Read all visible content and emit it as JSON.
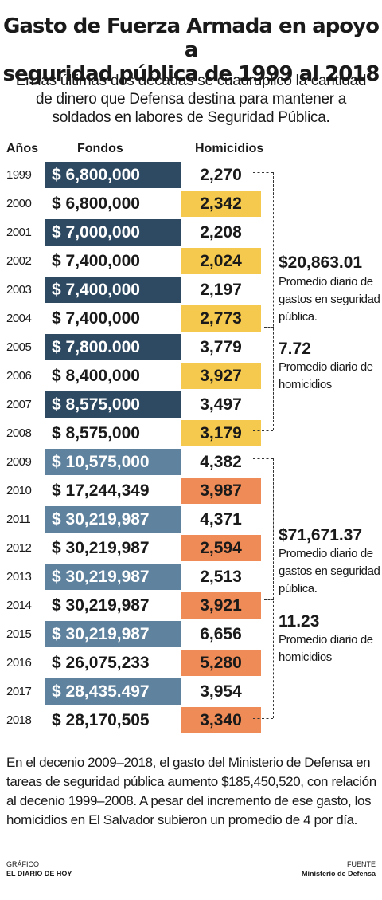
{
  "header": {
    "title_line1": "Gasto de Fuerza Armada en apoyo a",
    "title_line2": "seguridad pública de 1999 al 2018",
    "subtitle": "En las últimas dos décadas se cuadruplicó la cantidad de dinero que Defensa destina para mantener a soldados en labores de Seguridad Pública."
  },
  "columns": {
    "years": "Años",
    "fondos": "Fondos",
    "homicidios": "Homicidios"
  },
  "colors": {
    "dark_navy": "#2e4a62",
    "steel_blue": "#5f829e",
    "yellow": "#f5c94e",
    "orange": "#ee8b56"
  },
  "chart_data": {
    "type": "table",
    "columns": [
      "Años",
      "Fondos",
      "Homicidios"
    ],
    "rows": [
      {
        "year": "1999",
        "fondos": "$ 6,800,000",
        "homicidios": "2,270"
      },
      {
        "year": "2000",
        "fondos": "$ 6,800,000",
        "homicidios": "2,342"
      },
      {
        "year": "2001",
        "fondos": "$ 7,000,000",
        "homicidios": "2,208"
      },
      {
        "year": "2002",
        "fondos": "$ 7,400,000",
        "homicidios": "2,024"
      },
      {
        "year": "2003",
        "fondos": "$ 7,400,000",
        "homicidios": "2,197"
      },
      {
        "year": "2004",
        "fondos": "$ 7,400,000",
        "homicidios": "2,773"
      },
      {
        "year": "2005",
        "fondos": "$ 7,800.000",
        "homicidios": "3,779"
      },
      {
        "year": "2006",
        "fondos": "$ 8,400,000",
        "homicidios": "3,927"
      },
      {
        "year": "2007",
        "fondos": "$ 8,575,000",
        "homicidios": "3,497"
      },
      {
        "year": "2008",
        "fondos": "$ 8,575,000",
        "homicidios": "3,179"
      },
      {
        "year": "2009",
        "fondos": "$ 10,575,000",
        "homicidios": "4,382"
      },
      {
        "year": "2010",
        "fondos": "$ 17,244,349",
        "homicidios": "3,987"
      },
      {
        "year": "2011",
        "fondos": "$ 30,219,987",
        "homicidios": "4,371"
      },
      {
        "year": "2012",
        "fondos": "$ 30,219,987",
        "homicidios": "2,594"
      },
      {
        "year": "2013",
        "fondos": "$ 30,219,987",
        "homicidios": "2,513"
      },
      {
        "year": "2014",
        "fondos": "$ 30,219,987",
        "homicidios": "3,921"
      },
      {
        "year": "2015",
        "fondos": "$ 30,219,987",
        "homicidios": "6,656"
      },
      {
        "year": "2016",
        "fondos": "$ 26,075,233",
        "homicidios": "5,280"
      },
      {
        "year": "2017",
        "fondos": "$ 28,435.497",
        "homicidios": "3,954"
      },
      {
        "year": "2018",
        "fondos": "$ 28,170,505",
        "homicidios": "3,340"
      }
    ]
  },
  "summaries": [
    {
      "decade": "1999-2008",
      "gasto_value": "$20,863.01",
      "gasto_label": "Promedio diario de gastos en seguridad pública.",
      "homicidios_value": "7.72",
      "homicidios_label": "Promedio diario de homicidios"
    },
    {
      "decade": "2009-2018",
      "gasto_value": "$71,671.37",
      "gasto_label": "Promedio diario de gastos en seguridad pública.",
      "homicidios_value": "11.23",
      "homicidios_label": "Promedio diario de homicidios"
    }
  ],
  "footer": {
    "text": "En el decenio 2009–2018, el gasto del Ministerio de Defensa en tareas de seguridad pública aumento $185,450,520, con relación al decenio 1999–2008. A pesar del incremento de ese gasto, los homicidios en El Salvador subieron un promedio de 4 por día.",
    "grafico_label": "GRÁFICO",
    "grafico_value": "EL DIARIO DE HOY",
    "fuente_label": "FUENTE",
    "fuente_value": "Ministerio de Defensa"
  }
}
